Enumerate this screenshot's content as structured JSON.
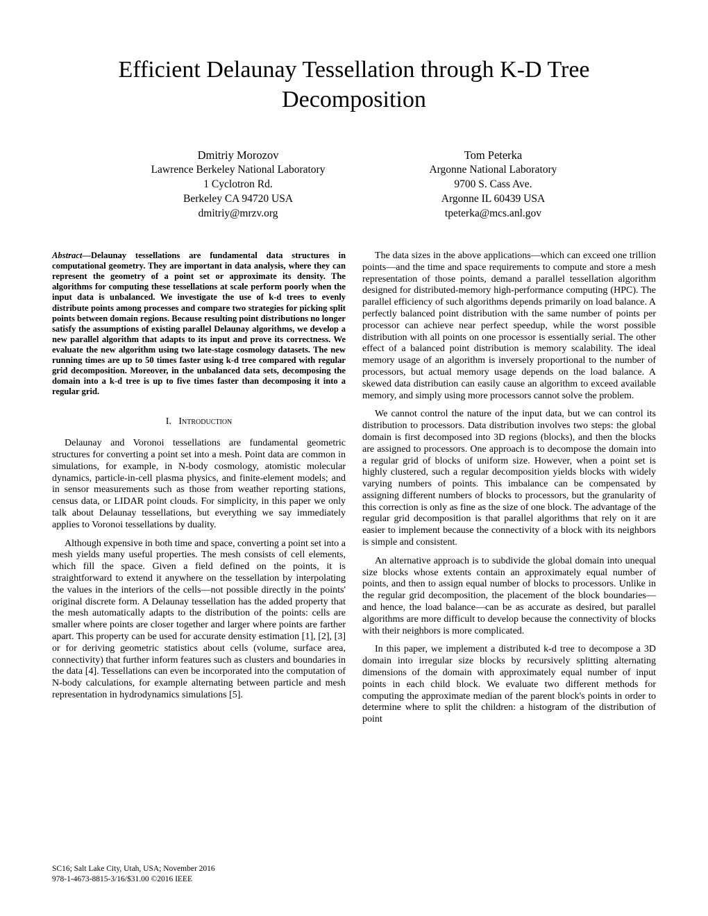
{
  "title": "Efficient Delaunay Tessellation through K-D Tree Decomposition",
  "authors": [
    {
      "name": "Dmitriy Morozov",
      "affiliation": "Lawrence Berkeley National Laboratory",
      "address1": "1 Cyclotron Rd.",
      "address2": "Berkeley CA 94720 USA",
      "email": "dmitriy@mrzv.org"
    },
    {
      "name": "Tom Peterka",
      "affiliation": "Argonne National Laboratory",
      "address1": "9700 S. Cass Ave.",
      "address2": "Argonne IL 60439 USA",
      "email": "tpeterka@mcs.anl.gov"
    }
  ],
  "abstract_label": "Abstract",
  "abstract": "—Delaunay tessellations are fundamental data structures in computational geometry. They are important in data analysis, where they can represent the geometry of a point set or approximate its density. The algorithms for computing these tessellations at scale perform poorly when the input data is unbalanced. We investigate the use of k-d trees to evenly distribute points among processes and compare two strategies for picking split points between domain regions. Because resulting point distributions no longer satisfy the assumptions of existing parallel Delaunay algorithms, we develop a new parallel algorithm that adapts to its input and prove its correctness. We evaluate the new algorithm using two late-stage cosmology datasets. The new running times are up to 50 times faster using k-d tree compared with regular grid decomposition. Moreover, in the unbalanced data sets, decomposing the domain into a k-d tree is up to five times faster than decomposing it into a regular grid.",
  "section1_num": "I.",
  "section1_title": "Introduction",
  "left_paras": [
    "Delaunay and Voronoi tessellations are fundamental geometric structures for converting a point set into a mesh. Point data are common in simulations, for example, in N-body cosmology, atomistic molecular dynamics, particle-in-cell plasma physics, and finite-element models; and in sensor measurements such as those from weather reporting stations, census data, or LIDAR point clouds. For simplicity, in this paper we only talk about Delaunay tessellations, but everything we say immediately applies to Voronoi tessellations by duality.",
    "Although expensive in both time and space, converting a point set into a mesh yields many useful properties. The mesh consists of cell elements, which fill the space. Given a field defined on the points, it is straightforward to extend it anywhere on the tessellation by interpolating the values in the interiors of the cells—not possible directly in the points' original discrete form. A Delaunay tessellation has the added property that the mesh automatically adapts to the distribution of the points: cells are smaller where points are closer together and larger where points are farther apart. This property can be used for accurate density estimation [1], [2], [3] or for deriving geometric statistics about cells (volume, surface area, connectivity) that further inform features such as clusters and boundaries in the data [4]. Tessellations can even be incorporated into the computation of N-body calculations, for example alternating between particle and mesh representation in hydrodynamics simulations [5]."
  ],
  "right_paras": [
    "The data sizes in the above applications—which can exceed one trillion points—and the time and space requirements to compute and store a mesh representation of those points, demand a parallel tessellation algorithm designed for distributed-memory high-performance computing (HPC). The parallel efficiency of such algorithms depends primarily on load balance. A perfectly balanced point distribution with the same number of points per processor can achieve near perfect speedup, while the worst possible distribution with all points on one processor is essentially serial. The other effect of a balanced point distribution is memory scalability. The ideal memory usage of an algorithm is inversely proportional to the number of processors, but actual memory usage depends on the load balance. A skewed data distribution can easily cause an algorithm to exceed available memory, and simply using more processors cannot solve the problem.",
    "We cannot control the nature of the input data, but we can control its distribution to processors. Data distribution involves two steps: the global domain is first decomposed into 3D regions (blocks), and then the blocks are assigned to processors. One approach is to decompose the domain into a regular grid of blocks of uniform size. However, when a point set is highly clustered, such a regular decomposition yields blocks with widely varying numbers of points. This imbalance can be compensated by assigning different numbers of blocks to processors, but the granularity of this correction is only as fine as the size of one block. The advantage of the regular grid decomposition is that parallel algorithms that rely on it are easier to implement because the connectivity of a block with its neighbors is simple and consistent.",
    "An alternative approach is to subdivide the global domain into unequal size blocks whose extents contain an approximately equal number of points, and then to assign equal number of blocks to processors. Unlike in the regular grid decomposition, the placement of the block boundaries—and hence, the load balance—can be as accurate as desired, but parallel algorithms are more difficult to develop because the connectivity of blocks with their neighbors is more complicated.",
    "In this paper, we implement a distributed k-d tree to decompose a 3D domain into irregular size blocks by recursively splitting alternating dimensions of the domain with approximately equal number of input points in each child block. We evaluate two different methods for computing the approximate median of the parent block's points in order to determine where to split the children: a histogram of the distribution of point"
  ],
  "footer_line1": "SC16; Salt Lake City, Utah, USA; November 2016",
  "footer_line2": "978-1-4673-8815-3/16/$31.00 ©2016 IEEE"
}
